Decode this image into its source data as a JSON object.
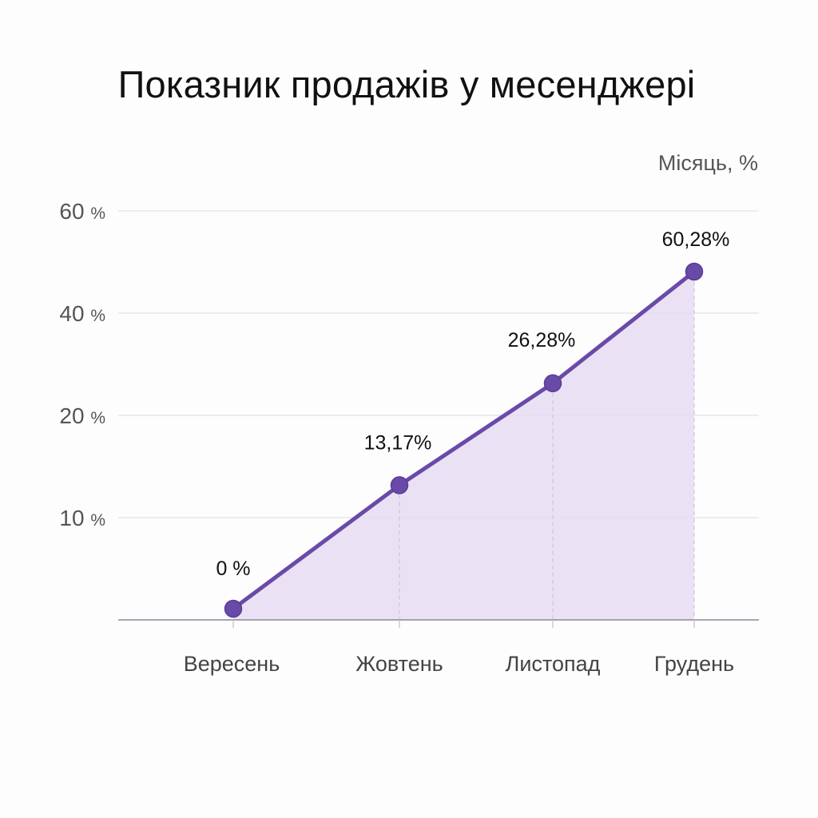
{
  "chart_data": {
    "type": "area",
    "title": "Показник продажів у месенджері",
    "ylabel": "Місяць, %",
    "xlabel": "",
    "categories": [
      "Вересень",
      "Жовтень",
      "Листопад",
      "Грудень"
    ],
    "series": [
      {
        "values": [
          0,
          13.17,
          26.28,
          60.28
        ]
      }
    ],
    "data_labels": [
      "0 %",
      "13,17%",
      "26,28%",
      "60,28%"
    ],
    "y_ticks": [
      {
        "value": 10,
        "label": "10 %"
      },
      {
        "value": 20,
        "label": "20 %"
      },
      {
        "value": 40,
        "label": "40 %"
      },
      {
        "value": 60,
        "label": "60 %"
      }
    ],
    "grid": true,
    "legend": "none",
    "colors": {
      "line": "#6a4aa8",
      "marker": "#6a4aa8",
      "fill": "#e6dcf2",
      "grid": "#e2e2e2",
      "axis": "#8a8a9a"
    }
  }
}
